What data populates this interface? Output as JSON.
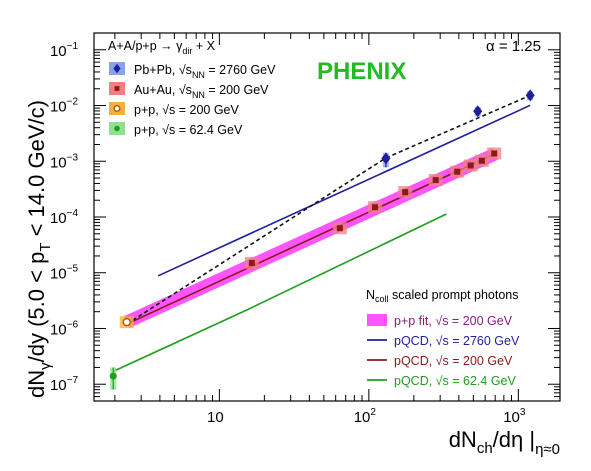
{
  "chart_data": {
    "type": "scatter",
    "title": "",
    "xlabel": "dNch/dη |η≈0",
    "xlabel_main": "dN",
    "xlabel_sub1": "ch",
    "xlabel_mid": "/dη |",
    "xlabel_sub2": "η≈0",
    "ylabel": "dNγ/dy  (5.0 < pT < 14.0 GeV/c)",
    "ylabel_main": "dN",
    "ylabel_sub1": "γ",
    "ylabel_mid": "/dy  (5.0 < p",
    "ylabel_sub2": "T",
    "ylabel_end": " < 14.0 GeV/c)",
    "x_scale": "log",
    "y_scale": "log",
    "xlim": [
      1.45,
      1900
    ],
    "ylim": [
      5e-08,
      0.2
    ],
    "x_ticks": [
      {
        "value": 10,
        "label": "10"
      },
      {
        "value": 100,
        "label": "10"
      },
      {
        "value": 1000,
        "label": "10"
      }
    ],
    "x_tick_exps": {
      "10": "",
      "100": "2",
      "1000": "3"
    },
    "y_ticks": [
      {
        "value": 0.1,
        "base": "10",
        "exp": "−1"
      },
      {
        "value": 0.01,
        "base": "10",
        "exp": "−2"
      },
      {
        "value": 0.001,
        "base": "10",
        "exp": "−3"
      },
      {
        "value": 0.0001,
        "base": "10",
        "exp": "−4"
      },
      {
        "value": 1e-05,
        "base": "10",
        "exp": "−5"
      },
      {
        "value": 1e-06,
        "base": "10",
        "exp": "−6"
      },
      {
        "value": 1e-07,
        "base": "10",
        "exp": "−7"
      }
    ],
    "annotations": {
      "experiment": "PHENIX",
      "alpha": "α = 1.25",
      "legend_header": "A+A/p+p → γdir + X",
      "legend_header_main": "A+A/p+p → γ",
      "legend_header_sub": "dir",
      "legend_header_end": " + X",
      "lines_header": "Ncoll scaled prompt photons",
      "lines_header_main": "N",
      "lines_header_sub": "coll",
      "lines_header_end": " scaled prompt photons"
    },
    "series": [
      {
        "name": "Pb+Pb, √sNN = 2760 GeV",
        "label_main": "Pb+Pb, √s",
        "label_sub": "NN",
        "label_end": " = 2760 GeV",
        "marker": "diamond",
        "color": "#1f1f9e",
        "box_color": "#8aa2e6",
        "x": [
          130,
          535,
          1200
        ],
        "y": [
          0.00112,
          0.0079,
          0.0152
        ],
        "y_low": [
          0.00078,
          0.0064,
          0.0125
        ],
        "y_high": [
          0.00142,
          0.0094,
          0.018
        ]
      },
      {
        "name": "Au+Au, √sNN = 200 GeV",
        "label_main": "Au+Au, √s",
        "label_sub": "NN",
        "label_end": " = 200 GeV",
        "marker": "square",
        "color": "#8b1a1a",
        "box_color": "#f08080",
        "x": [
          16.5,
          64,
          110,
          175,
          280,
          390,
          480,
          570,
          690
        ],
        "y": [
          1.5e-05,
          6.3e-05,
          0.00015,
          0.00028,
          0.00046,
          0.00065,
          0.00084,
          0.00102,
          0.00138
        ]
      },
      {
        "name": "p+p, √s = 200 GeV",
        "label_main": "p+p, √s = 200 GeV",
        "marker": "open-circle",
        "color": "#b35900",
        "box_color": "#f5b041",
        "x": [
          2.4
        ],
        "y": [
          1.3e-06
        ]
      },
      {
        "name": "p+p, √s = 62.4 GeV",
        "label_main": "p+p, √s = 62.4 GeV",
        "marker": "circle",
        "color": "#1e9e1e",
        "box_color": "#90e090",
        "x": [
          1.95
        ],
        "y": [
          1.4e-07
        ],
        "y_low": [
          8e-08
        ],
        "y_high": [
          2e-07
        ]
      }
    ],
    "lines": [
      {
        "name": "p+p fit, √s = 200 GeV",
        "label_main": "p+p fit, √s = 200 GeV",
        "style": "band",
        "color": "#ff55ff",
        "text_color": "#8b1a8b",
        "x": [
          2.4,
          700
        ],
        "y": [
          1.3e-06,
          0.00135
        ]
      },
      {
        "name": "pQCD, √s = 2760 GeV",
        "label_main": "pQCD, √s = 2760 GeV",
        "style": "solid",
        "color": "#1f1f9e",
        "text_color": "#1f1f9e",
        "x": [
          3.9,
          1200
        ],
        "y": [
          8.8e-06,
          0.0101
        ]
      },
      {
        "name": "pQCD, √s = 200 GeV",
        "label_main": "pQCD, √s = 200 GeV",
        "style": "solid",
        "color": "#8b1a1a",
        "text_color": "#8b1a1a",
        "x": [
          2.4,
          700
        ],
        "y": [
          1.2e-06,
          0.00137
        ]
      },
      {
        "name": "pQCD, √s = 62.4 GeV",
        "label_main": "pQCD, √s = 62.4 GeV",
        "style": "solid",
        "color": "#1e9e1e",
        "text_color": "#1e9e1e",
        "x": [
          1.95,
          15,
          330
        ],
        "y": [
          1.7e-07,
          2.1e-06,
          0.000113
        ]
      },
      {
        "name": "",
        "label_main": "",
        "style": "dashed",
        "color": "#111111",
        "text_color": "#111111",
        "x": [
          2.4,
          130,
          1200
        ],
        "y": [
          1.2e-06,
          0.00115,
          0.0152
        ]
      }
    ]
  },
  "colors": {
    "experiment": "#22bb22",
    "axis": "#000000"
  }
}
